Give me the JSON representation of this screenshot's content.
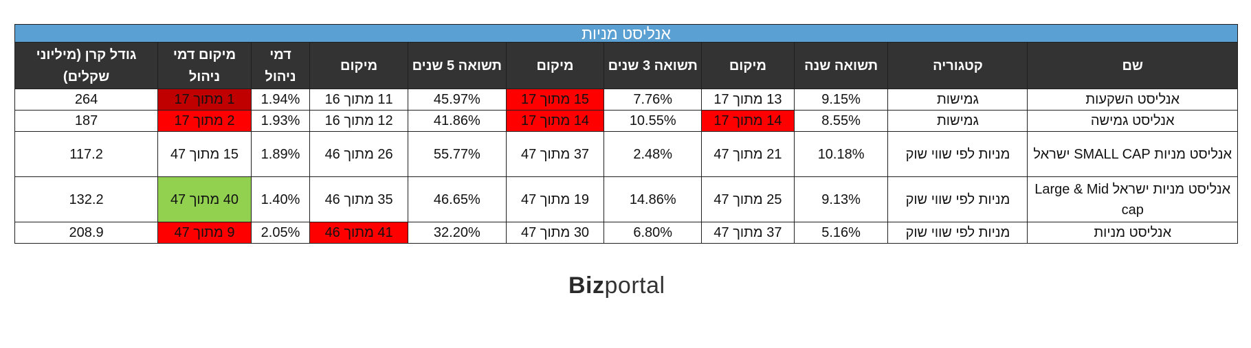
{
  "title": "אנליסט מניות",
  "headers": [
    "שם",
    "קטגוריה",
    "תשואה שנה",
    "מיקום",
    "תשואה 3 שנים",
    "מיקום",
    "תשואה 5 שנים",
    "מיקום",
    "דמי ניהול",
    "מיקום דמי ניהול",
    "גודל קרן (מיליוני שקלים)"
  ],
  "rows": [
    [
      "אנליסט השקעות",
      "גמישות",
      "9.15%",
      "13 מתוך 17",
      "7.76%",
      "15 מתוך 17",
      "45.97%",
      "11 מתוך 16",
      "1.94%",
      "1 מתוך 17",
      "264"
    ],
    [
      "אנליסט גמישה",
      "גמישות",
      "8.55%",
      "14 מתוך 17",
      "10.55%",
      "14 מתוך 17",
      "41.86%",
      "12 מתוך 16",
      "1.93%",
      "2 מתוך 17",
      "187"
    ],
    [
      "אנליסט מניות SMALL CAP ישראל",
      "מניות לפי שווי שוק",
      "10.18%",
      "21 מתוך 47",
      "2.48%",
      "37 מתוך 47",
      "55.77%",
      "26 מתוך 46",
      "1.89%",
      "15 מתוך 47",
      "117.2"
    ],
    [
      "אנליסט מניות ישראל Large & Mid cap",
      "מניות לפי שווי שוק",
      "9.13%",
      "25 מתוך 47",
      "14.86%",
      "19 מתוך 47",
      "46.65%",
      "35 מתוך 46",
      "1.40%",
      "40 מתוך 47",
      "132.2"
    ],
    [
      "אנליסט מניות",
      "מניות לפי שווי שוק",
      "5.16%",
      "37 מתוך 47",
      "6.80%",
      "30 מתוך 47",
      "32.20%",
      "41 מתוך 46",
      "2.05%",
      "9 מתוך 47",
      "208.9"
    ]
  ],
  "highlight_colors": {
    "red": "#ff0000",
    "dark_red": "#c00000",
    "green": "#92d050",
    "header_bg": "#333333",
    "title_bg": "#5aa0d2"
  },
  "logo": {
    "bold_part": "Biz",
    "light_part": "portal"
  }
}
